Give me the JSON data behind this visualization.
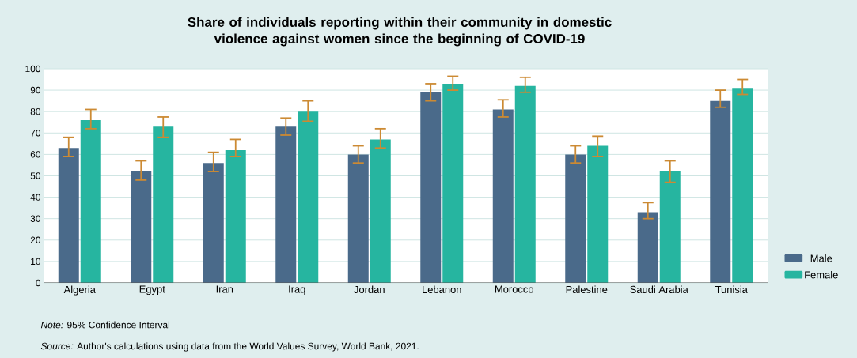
{
  "chart_data": {
    "type": "bar",
    "title": "Share of individuals reporting within their community in domestic violence against women since the beginning of COVID-19",
    "categories": [
      "Algeria",
      "Egypt",
      "Iran",
      "Iraq",
      "Jordan",
      "Lebanon",
      "Morocco",
      "Palestine",
      "Saudi Arabia",
      "Tunisia"
    ],
    "series": [
      {
        "name": "Male",
        "color": "#4a6a8a",
        "values": [
          63,
          52,
          56,
          73,
          60,
          89,
          81,
          60,
          33,
          85
        ],
        "errors": [
          [
            59,
            68
          ],
          [
            48,
            57
          ],
          [
            52,
            61
          ],
          [
            69,
            77
          ],
          [
            56,
            64
          ],
          [
            85,
            93
          ],
          [
            77.5,
            85.5
          ],
          [
            56,
            64
          ],
          [
            30,
            37.5
          ],
          [
            82,
            90
          ]
        ]
      },
      {
        "name": "Female",
        "color": "#26b5a0",
        "values": [
          76,
          73,
          62,
          80,
          67,
          93,
          92,
          64,
          52,
          91
        ],
        "errors": [
          [
            72,
            81
          ],
          [
            68,
            77.5
          ],
          [
            59,
            67
          ],
          [
            75.5,
            85
          ],
          [
            63,
            72
          ],
          [
            90,
            96.5
          ],
          [
            89,
            96
          ],
          [
            59,
            68.5
          ],
          [
            47,
            57
          ],
          [
            88,
            95
          ]
        ]
      }
    ],
    "ylim": [
      0,
      100
    ],
    "yticks": [
      0,
      10,
      20,
      30,
      40,
      50,
      60,
      70,
      80,
      90,
      100
    ],
    "grid": "y",
    "legend": "right",
    "annotations": [
      "*Note:* 95% Confidence Interval",
      "*Source:* Author's calculations using data from the World Values Survey, World Bank, 2021."
    ]
  }
}
